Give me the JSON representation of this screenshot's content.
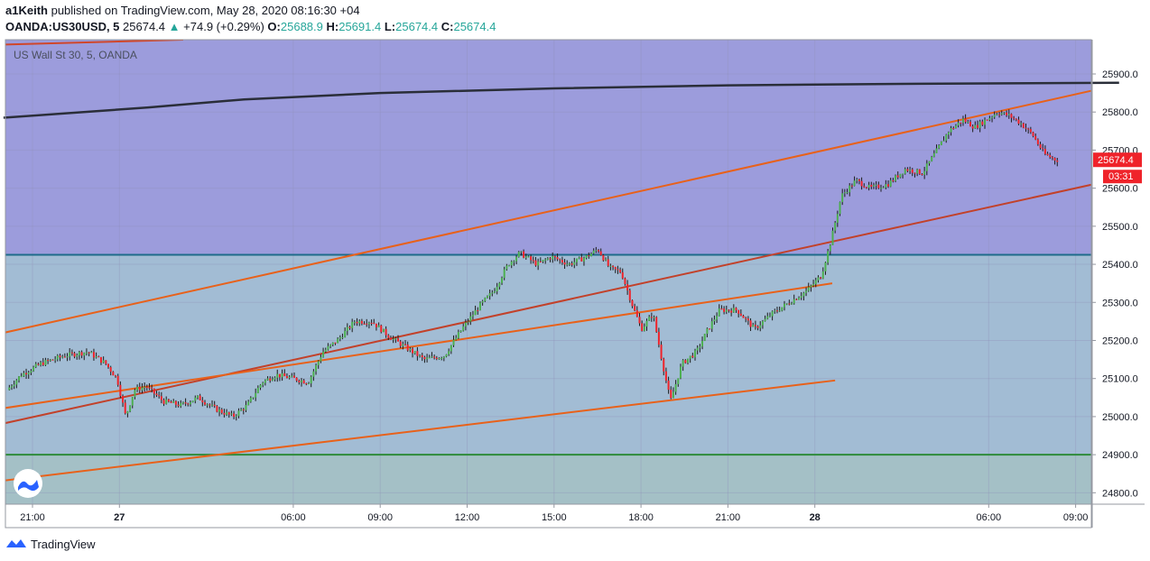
{
  "header": {
    "author": "a1Keith",
    "published_text": "published on TradingView.com, May 28, 2020 08:16:30 +04",
    "symbol": "OANDA:US30USD, 5",
    "last": "25674.4",
    "change_arrow": "▲",
    "change": "+74.9 (+0.29%)",
    "o_label": "O:",
    "o": "25688.9",
    "h_label": "H:",
    "h": "25691.4",
    "l_label": "L:",
    "l": "25674.4",
    "c_label": "C:",
    "c": "25674.4"
  },
  "chart_data": {
    "type": "line",
    "title": "US Wall St 30, 5, OANDA",
    "y_range": [
      24770,
      25990
    ],
    "y_ticks": [
      24800,
      24900,
      25000,
      25100,
      25200,
      25300,
      25400,
      25500,
      25600,
      25700,
      25800,
      25900
    ],
    "y_tick_labels": [
      "24800.0",
      "24900.0",
      "25000.0",
      "25100.0",
      "25200.0",
      "25300.0",
      "25400.0",
      "25500.0",
      "25600.0",
      "25700.0",
      "25800.0",
      "25900.0"
    ],
    "x_ticks": [
      {
        "label": "21:00",
        "bold": false,
        "t": 0
      },
      {
        "label": "27",
        "bold": true,
        "t": 3
      },
      {
        "label": "06:00",
        "bold": false,
        "t": 9
      },
      {
        "label": "09:00",
        "bold": false,
        "t": 12
      },
      {
        "label": "12:00",
        "bold": false,
        "t": 15
      },
      {
        "label": "15:00",
        "bold": false,
        "t": 18
      },
      {
        "label": "18:00",
        "bold": false,
        "t": 21
      },
      {
        "label": "21:00",
        "bold": false,
        "t": 24
      },
      {
        "label": "28",
        "bold": true,
        "t": 27
      },
      {
        "label": "06:00",
        "bold": false,
        "t": 33
      },
      {
        "label": "09:00",
        "bold": false,
        "t": 36
      },
      {
        "label": "12:00",
        "bold": false,
        "t": 39
      }
    ],
    "price_path": [
      [
        -0.8,
        25070
      ],
      [
        -0.3,
        25110
      ],
      [
        0.4,
        25140
      ],
      [
        1.2,
        25160
      ],
      [
        2.0,
        25170
      ],
      [
        2.6,
        25140
      ],
      [
        3.0,
        25100
      ],
      [
        3.3,
        25000
      ],
      [
        3.6,
        25070
      ],
      [
        4.0,
        25080
      ],
      [
        4.6,
        25040
      ],
      [
        5.2,
        25030
      ],
      [
        5.8,
        25050
      ],
      [
        6.4,
        25020
      ],
      [
        7.0,
        25000
      ],
      [
        7.5,
        25030
      ],
      [
        8.0,
        25090
      ],
      [
        8.5,
        25110
      ],
      [
        9.1,
        25100
      ],
      [
        9.6,
        25090
      ],
      [
        10.1,
        25170
      ],
      [
        10.6,
        25200
      ],
      [
        11.2,
        25250
      ],
      [
        11.8,
        25250
      ],
      [
        12.4,
        25210
      ],
      [
        13.0,
        25180
      ],
      [
        13.6,
        25150
      ],
      [
        14.3,
        25160
      ],
      [
        14.9,
        25230
      ],
      [
        15.5,
        25290
      ],
      [
        16.0,
        25330
      ],
      [
        16.5,
        25400
      ],
      [
        16.9,
        25430
      ],
      [
        17.5,
        25400
      ],
      [
        18.0,
        25420
      ],
      [
        18.6,
        25400
      ],
      [
        19.2,
        25420
      ],
      [
        19.6,
        25440
      ],
      [
        20.0,
        25390
      ],
      [
        20.4,
        25380
      ],
      [
        20.8,
        25290
      ],
      [
        21.1,
        25230
      ],
      [
        21.5,
        25270
      ],
      [
        21.8,
        25150
      ],
      [
        22.1,
        25040
      ],
      [
        22.5,
        25140
      ],
      [
        23.0,
        25170
      ],
      [
        23.4,
        25230
      ],
      [
        23.8,
        25280
      ],
      [
        24.4,
        25280
      ],
      [
        25.0,
        25230
      ],
      [
        25.6,
        25270
      ],
      [
        26.2,
        25300
      ],
      [
        26.8,
        25330
      ],
      [
        27.3,
        25370
      ],
      [
        27.6,
        25450
      ],
      [
        28.0,
        25580
      ],
      [
        28.5,
        25620
      ],
      [
        29.0,
        25600
      ],
      [
        29.6,
        25610
      ],
      [
        30.2,
        25650
      ],
      [
        30.8,
        25640
      ],
      [
        31.3,
        25700
      ],
      [
        31.7,
        25750
      ],
      [
        32.2,
        25780
      ],
      [
        32.6,
        25760
      ],
      [
        33.0,
        25780
      ],
      [
        33.4,
        25800
      ],
      [
        33.8,
        25790
      ],
      [
        34.2,
        25770
      ],
      [
        34.6,
        25740
      ],
      [
        35.0,
        25690
      ],
      [
        35.4,
        25674.4
      ]
    ],
    "ema_line": {
      "color": "#2a2e39",
      "points": [
        [
          -1,
          25785
        ],
        [
          4,
          25812
        ],
        [
          7.3,
          25833
        ],
        [
          12,
          25850
        ],
        [
          18,
          25862
        ],
        [
          24,
          25870
        ],
        [
          30,
          25874
        ],
        [
          37.5,
          25877
        ]
      ]
    },
    "zones": [
      {
        "color": "#9c9cdc",
        "from": 25425,
        "to": 25990
      },
      {
        "color": "#a2bcd4",
        "from": 24900,
        "to": 25425
      },
      {
        "color": "#a4c0c6",
        "from": 24770,
        "to": 24900
      }
    ],
    "horizontal_lines": [
      {
        "price": 25425,
        "color": "#1e6b8a"
      },
      {
        "price": 24900,
        "color": "#2e8b3a"
      }
    ],
    "trend_lines": [
      {
        "color": "#e8611a",
        "p1": [
          -1,
          25220
        ],
        "p2": [
          37.5,
          25872
        ]
      },
      {
        "color": "#c2412a",
        "p1": [
          -1,
          24982
        ],
        "p2": [
          37.5,
          25625
        ]
      },
      {
        "color": "#e8611a",
        "p1": [
          -1,
          25022
        ],
        "p2": [
          27.6,
          25350
        ]
      },
      {
        "color": "#e8611a",
        "p1": [
          -1,
          24832
        ],
        "p2": [
          27.7,
          25095
        ]
      },
      {
        "color": "#d0462a",
        "p1": [
          -1,
          25977
        ],
        "p2": [
          5.2,
          25990
        ]
      }
    ],
    "last_price": {
      "label": "25674.4",
      "countdown": "03:31",
      "value": 25674.4,
      "color": "#ef232a"
    },
    "up_color": "#4caf50",
    "down_color": "#ef232a"
  },
  "footer": {
    "brand": "TradingView"
  }
}
